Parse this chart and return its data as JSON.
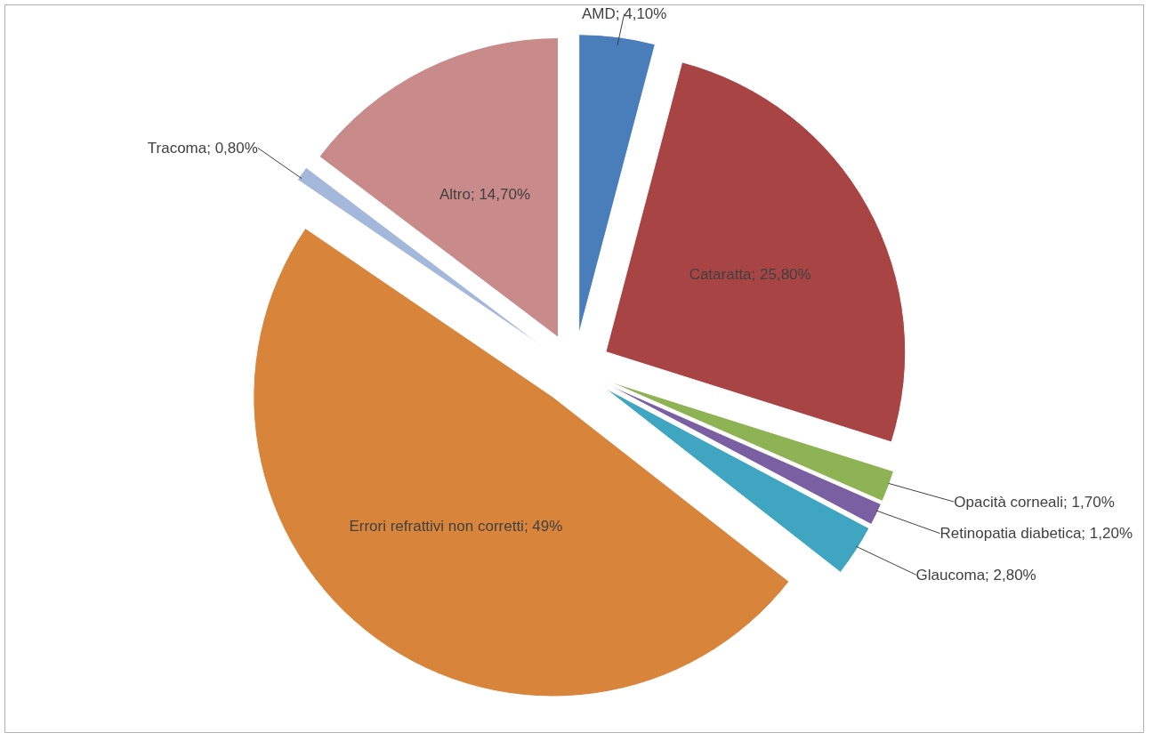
{
  "chart_data": {
    "type": "pie",
    "categories": [
      "AMD",
      "Cataratta",
      "Opacità corneali",
      "Retinopatia diabetica",
      "Glaucoma",
      "Errori refrattivi non corretti",
      "Tracoma",
      "Altro"
    ],
    "values": [
      4.1,
      25.8,
      1.7,
      1.2,
      2.8,
      49,
      0.8,
      14.7
    ],
    "value_labels": [
      "4,10%",
      "25,80%",
      "1,70%",
      "1,20%",
      "2,80%",
      "49%",
      "0,80%",
      "14,70%"
    ],
    "colors": [
      "#4a7ebb",
      "#a94444",
      "#8db354",
      "#7b5fa3",
      "#3fa5c0",
      "#d9843b",
      "#a3b8da",
      "#c98a8a"
    ],
    "legend": false
  }
}
